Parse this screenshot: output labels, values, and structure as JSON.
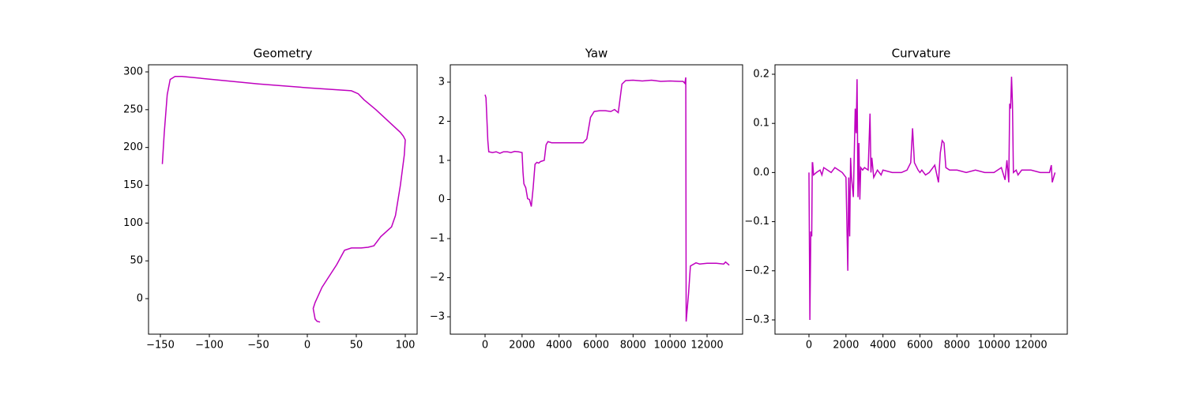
{
  "chart_data": [
    {
      "type": "line",
      "title": "Geometry",
      "color": "#bf00bf",
      "grid": false,
      "x": [
        -148,
        -146,
        -143,
        -140,
        -135,
        -128,
        -50,
        0,
        45,
        52,
        58,
        70,
        95,
        98,
        100,
        99,
        95,
        90,
        86,
        75,
        68,
        62,
        55,
        45,
        38,
        30,
        20,
        15,
        8,
        6,
        8,
        10,
        13
      ],
      "values": [
        178,
        220,
        270,
        290,
        294,
        294,
        284,
        279,
        275,
        271,
        263,
        250,
        220,
        215,
        210,
        190,
        150,
        110,
        95,
        82,
        70,
        68,
        67,
        67,
        64,
        45,
        25,
        15,
        -5,
        -13,
        -27,
        -30,
        -31
      ],
      "xlim": [
        -162.1,
        112.1
      ],
      "ylim": [
        -47.0,
        309.4
      ],
      "xticks": [
        {
          "value": -150,
          "label": "−150"
        },
        {
          "value": -100,
          "label": "−100"
        },
        {
          "value": -50,
          "label": "−50"
        },
        0,
        50,
        100
      ],
      "yticks": [
        0,
        50,
        100,
        150,
        200,
        250,
        300
      ]
    },
    {
      "type": "line",
      "title": "Yaw",
      "color": "#bf00bf",
      "grid": false,
      "x": [
        0,
        50,
        150,
        200,
        400,
        600,
        800,
        1000,
        1200,
        1400,
        1600,
        1800,
        2000,
        2050,
        2100,
        2200,
        2300,
        2400,
        2500,
        2600,
        2700,
        2800,
        2900,
        3000,
        3200,
        3300,
        3400,
        3600,
        3800,
        4000,
        5000,
        5300,
        5500,
        5700,
        5900,
        6200,
        6500,
        6800,
        7000,
        7200,
        7400,
        7600,
        8000,
        8500,
        9000,
        9500,
        10000,
        10500,
        10700,
        10800,
        10850,
        10870,
        11000,
        11100,
        11400,
        11600,
        12000,
        12500,
        12900,
        13000,
        13200
      ],
      "values": [
        2.68,
        2.6,
        1.5,
        1.22,
        1.2,
        1.22,
        1.18,
        1.22,
        1.22,
        1.2,
        1.23,
        1.22,
        1.2,
        0.7,
        0.4,
        0.3,
        0.02,
        0.0,
        -0.18,
        0.3,
        0.9,
        0.95,
        0.93,
        0.97,
        1.0,
        1.4,
        1.48,
        1.45,
        1.45,
        1.45,
        1.45,
        1.45,
        1.55,
        2.1,
        2.25,
        2.27,
        2.27,
        2.25,
        2.3,
        2.22,
        2.95,
        3.04,
        3.05,
        3.03,
        3.05,
        3.02,
        3.03,
        3.02,
        3.02,
        2.97,
        3.12,
        -3.12,
        -2.4,
        -1.7,
        -1.62,
        -1.65,
        -1.63,
        -1.63,
        -1.65,
        -1.6,
        -1.68
      ],
      "xlim": [
        -1879,
        13921
      ],
      "ylim": [
        -3.444,
        3.444
      ],
      "xticks": [
        0,
        2000,
        4000,
        6000,
        8000,
        10000,
        12000
      ],
      "yticks": [
        {
          "value": -3,
          "label": "−3"
        },
        {
          "value": -2,
          "label": "−2"
        },
        {
          "value": -1,
          "label": "−1"
        },
        0,
        1,
        2,
        3
      ]
    },
    {
      "type": "line",
      "title": "Curvature",
      "color": "#bf00bf",
      "grid": false,
      "x": [
        0,
        50,
        100,
        150,
        180,
        200,
        250,
        400,
        600,
        700,
        800,
        1000,
        1200,
        1400,
        1600,
        1800,
        2000,
        2100,
        2150,
        2200,
        2250,
        2300,
        2400,
        2500,
        2550,
        2600,
        2650,
        2700,
        2750,
        2800,
        2900,
        3000,
        3200,
        3300,
        3350,
        3400,
        3500,
        3700,
        3900,
        4000,
        4500,
        5000,
        5300,
        5500,
        5600,
        5700,
        5900,
        6000,
        6100,
        6300,
        6500,
        6800,
        7000,
        7100,
        7200,
        7300,
        7400,
        7600,
        8000,
        8500,
        9000,
        9500,
        10000,
        10400,
        10600,
        10700,
        10800,
        10850,
        10900,
        10950,
        11000,
        11050,
        11200,
        11300,
        11500,
        12000,
        12500,
        13000,
        13100,
        13150,
        13300
      ],
      "values": [
        0,
        -0.3,
        -0.12,
        -0.13,
        0.02,
        0.02,
        -0.005,
        0,
        0.005,
        -0.005,
        0.01,
        0.005,
        0,
        0.01,
        0.005,
        0.0,
        -0.01,
        -0.2,
        -0.01,
        -0.13,
        0.03,
        -0.01,
        -0.05,
        0.13,
        0.08,
        0.19,
        -0.05,
        0.06,
        -0.055,
        0.01,
        0.005,
        0.01,
        0.005,
        0.12,
        0.0,
        0.03,
        -0.01,
        0.005,
        -0.005,
        0.005,
        0.0,
        0.0,
        0.005,
        0.02,
        0.09,
        0.02,
        0.005,
        0.0,
        0.005,
        -0.005,
        0.0,
        0.015,
        -0.02,
        0.04,
        0.065,
        0.06,
        0.01,
        0.005,
        0.005,
        0.0,
        0.005,
        0.0,
        0.0,
        0.01,
        -0.015,
        0.025,
        -0.02,
        0.14,
        0.13,
        0.195,
        0.14,
        0.0,
        0.005,
        -0.005,
        0.005,
        0.005,
        0.0,
        0.0,
        0.015,
        -0.02,
        0.0
      ],
      "xlim": [
        -1836,
        13963
      ],
      "ylim": [
        -0.329,
        0.2193
      ],
      "xticks": [
        0,
        2000,
        4000,
        6000,
        8000,
        10000,
        12000
      ],
      "yticks": [
        {
          "value": -0.3,
          "label": "−0.3"
        },
        {
          "value": -0.2,
          "label": "−0.2"
        },
        {
          "value": -0.1,
          "label": "−0.1"
        },
        {
          "value": 0,
          "label": "0.0"
        },
        0.1,
        0.2
      ]
    }
  ]
}
